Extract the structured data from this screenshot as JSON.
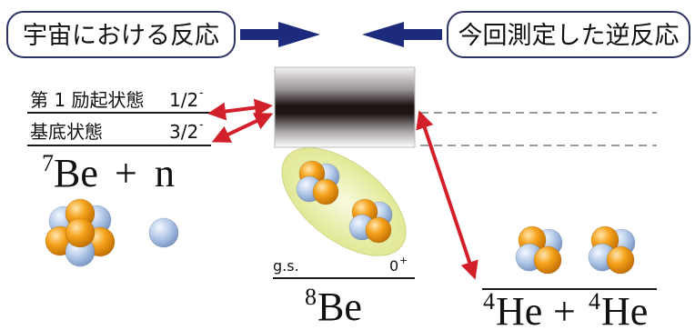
{
  "colors": {
    "label_box_border": "#2e3466",
    "process_arrow": "#1d2b7d",
    "transition_arrow": "#d2202a",
    "proton": "#f5a31c",
    "neutron": "#b6cbe9",
    "be8_ellipse": "#dfe68c",
    "level_line": "#1a1a1a",
    "dashed_level": "#7a7a7a"
  },
  "reaction_labels": {
    "cosmic": "宇宙における反応",
    "measured_inverse": "今回測定した逆反応"
  },
  "be7_levels": [
    {
      "name": "第 1 励起状態",
      "spin": "1/2",
      "parity": "-"
    },
    {
      "name": "基底状態",
      "spin": "3/2",
      "parity": "-"
    }
  ],
  "be7_plus_n": {
    "mass_number": "7",
    "nucleus": "Be",
    "plus": "+",
    "particle": "n"
  },
  "be8": {
    "state": "g.s.",
    "spin": "0",
    "parity": "+",
    "mass_number": "8",
    "nucleus": "Be"
  },
  "two_alpha": {
    "mass_number_1": "4",
    "nucleus_1": "He",
    "plus": "+",
    "mass_number_2": "4",
    "nucleus_2": "He"
  }
}
